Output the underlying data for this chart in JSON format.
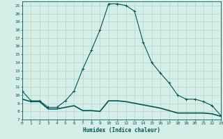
{
  "title": "",
  "xlabel": "Humidex (Indice chaleur)",
  "ylabel": "",
  "bg_color": "#d5eee8",
  "grid_color": "#b0d5c8",
  "line_color": "#005555",
  "x_upper": [
    0,
    1,
    2,
    3,
    4,
    5,
    6,
    7,
    8,
    9,
    10,
    11,
    12,
    13,
    14,
    15,
    16,
    17,
    18,
    19,
    20,
    21,
    22,
    23
  ],
  "y_upper": [
    10.5,
    9.3,
    9.3,
    8.5,
    8.5,
    9.3,
    10.5,
    13.2,
    15.5,
    18.0,
    21.2,
    21.2,
    21.0,
    20.3,
    16.5,
    14.0,
    12.7,
    11.5,
    10.0,
    9.5,
    9.5,
    9.2,
    8.7,
    7.5
  ],
  "x_lower": [
    0,
    1,
    2,
    3,
    4,
    5,
    6,
    7,
    8,
    9,
    10,
    11,
    12,
    13,
    14,
    15,
    16,
    17,
    18,
    19,
    20,
    21,
    22,
    23
  ],
  "y_lower": [
    9.5,
    9.2,
    9.2,
    8.3,
    8.3,
    8.5,
    8.7,
    8.1,
    8.1,
    8.0,
    9.3,
    9.3,
    9.2,
    9.0,
    8.8,
    8.6,
    8.4,
    8.1,
    7.8,
    7.8,
    7.8,
    7.8,
    7.7,
    7.4
  ],
  "xlim": [
    0,
    23
  ],
  "ylim": [
    7,
    21.5
  ],
  "yticks": [
    7,
    8,
    9,
    10,
    11,
    12,
    13,
    14,
    15,
    16,
    17,
    18,
    19,
    20,
    21
  ],
  "xticks": [
    0,
    1,
    2,
    3,
    4,
    5,
    6,
    7,
    8,
    9,
    10,
    11,
    12,
    13,
    14,
    15,
    16,
    17,
    18,
    19,
    20,
    21,
    22,
    23
  ]
}
